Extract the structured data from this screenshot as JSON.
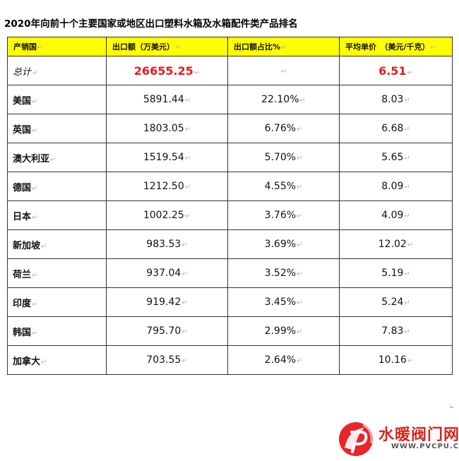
{
  "title": "2020年向前十个主要国家或地区出口塑料水箱及水箱配件类产品排名",
  "headers": [
    "产销国",
    "出口额（万美元）",
    "出口额占比%",
    "平均单价　（美元/千克）"
  ],
  "mark": "↵",
  "rows": [
    {
      "name": "总计",
      "value": "26655.25",
      "share": "",
      "price": "6.51"
    },
    {
      "name": "美国",
      "value": "5891.44",
      "share": "22.10%",
      "price": "8.03"
    },
    {
      "name": "英国",
      "value": "1803.05",
      "share": "6.76%",
      "price": "6.68"
    },
    {
      "name": "澳大利亚",
      "value": "1519.54",
      "share": "5.70%",
      "price": "5.65"
    },
    {
      "name": "德国",
      "value": "1212.50",
      "share": "4.55%",
      "price": "8.09"
    },
    {
      "name": "日本",
      "value": "1002.25",
      "share": "3.76%",
      "price": "4.09"
    },
    {
      "name": "新加坡",
      "value": "983.53",
      "share": "3.69%",
      "price": "12.02"
    },
    {
      "name": "荷兰",
      "value": "937.04",
      "share": "3.52%",
      "price": "5.19"
    },
    {
      "name": "印度",
      "value": "919.42",
      "share": "3.45%",
      "price": "5.24"
    },
    {
      "name": "韩国",
      "value": "795.70",
      "share": "2.99%",
      "price": "7.83"
    },
    {
      "name": "加拿大",
      "value": "703.55",
      "share": "2.64%",
      "price": "10.16"
    }
  ],
  "watermark": {
    "brand": "水暖阀门网",
    "url": "WWW.PVCPU.COM"
  },
  "colors": {
    "header_bg": "#ffff00",
    "highlight": "#e8191c"
  }
}
